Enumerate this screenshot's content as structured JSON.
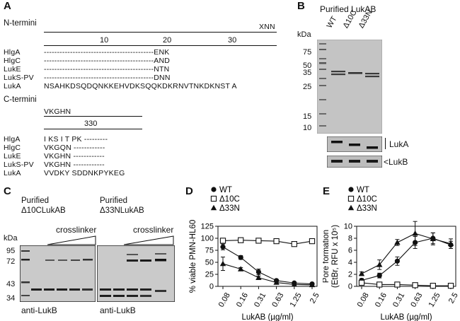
{
  "panel_a": {
    "label": "A",
    "n_title": "N-termini",
    "n_consensus": "XNN",
    "n_ticks": [
      "10",
      "20",
      "30"
    ],
    "n_rows": [
      {
        "name": "HlgA",
        "seq": "------------------------------------------ENK"
      },
      {
        "name": "HlgC",
        "seq": "------------------------------------------AND"
      },
      {
        "name": "LukE",
        "seq": "------------------------------------------NTN"
      },
      {
        "name": "LukS-PV",
        "seq": "------------------------------------------DNN"
      },
      {
        "name": "LukA",
        "seq": "NSAHKDSQDQNKKEHVDKSQQKDKRNVTNKDKNST A"
      }
    ],
    "c_title": "C-termini",
    "c_consensus": "VKGHN",
    "c_tick": "330",
    "c_rows": [
      {
        "name": "HlgA",
        "seq": "I KS I T PK ---------"
      },
      {
        "name": "HlgC",
        "seq": "VKGQN ------------"
      },
      {
        "name": "LukE",
        "seq": "VKGHN ------------"
      },
      {
        "name": "LukS-PV",
        "seq": "VKGHN ------------"
      },
      {
        "name": "LukA",
        "seq": "VVDKY SDDNKPYKEG"
      }
    ]
  },
  "panel_b": {
    "label": "B",
    "title": "Purified LukAB",
    "kda": "kDa",
    "lanes": [
      "WT",
      "Δ10C",
      "Δ33N"
    ],
    "markers": [
      "75",
      "50",
      "35",
      "25",
      "15",
      "10"
    ],
    "luka_label": "LukA",
    "lukb_label": "<LukB"
  },
  "panel_c": {
    "label": "C",
    "left_title_1": "Purified",
    "left_title_2": "Δ10CLukAB",
    "right_title_1": "Purified",
    "right_title_2": "Δ33NLukAB",
    "crosslinker": "crosslinker",
    "kda": "kDa",
    "markers": [
      "95",
      "72",
      "43",
      "34"
    ],
    "antibody": "anti-LukB"
  },
  "chart_data": [
    {
      "panel": "D",
      "type": "line",
      "ylabel": "% viable PMN-HL60",
      "xlabel": "LukAB (µg/ml)",
      "categories": [
        "0.08",
        "0.16",
        "0.31",
        "0.63",
        "1.25",
        "2.5"
      ],
      "ylim": [
        0,
        125
      ],
      "yticks": [
        "0",
        "25",
        "50",
        "75",
        "100",
        "125"
      ],
      "legend_position": "top-left",
      "series": [
        {
          "name": "WT",
          "marker": "circle-filled",
          "values": [
            82,
            60,
            30,
            12,
            7,
            5
          ],
          "errors": [
            6,
            4,
            6,
            2,
            2,
            1
          ]
        },
        {
          "name": "Δ10C",
          "marker": "square-open",
          "values": [
            95,
            96,
            95,
            94,
            88,
            94
          ],
          "errors": [
            3,
            2,
            2,
            2,
            3,
            5
          ]
        },
        {
          "name": "Δ33N",
          "marker": "triangle-filled",
          "values": [
            47,
            36,
            18,
            8,
            4,
            3
          ],
          "errors": [
            14,
            3,
            3,
            2,
            1,
            1
          ]
        }
      ]
    },
    {
      "panel": "E",
      "type": "line",
      "ylabel": "Pore formation",
      "ylabel2": "(EtBr, RFU x 10⁵)",
      "xlabel": "LukAB (µg/ml)",
      "categories": [
        "0.08",
        "0.16",
        "0.31",
        "0.63",
        "1.25",
        "2.5"
      ],
      "ylim": [
        0,
        10
      ],
      "yticks": [
        "0",
        "2",
        "4",
        "6",
        "8",
        "10"
      ],
      "legend_position": "top-left",
      "series": [
        {
          "name": "WT",
          "marker": "circle-filled",
          "values": [
            1.0,
            1.8,
            4.2,
            7.3,
            8.0,
            6.9
          ],
          "errors": [
            0.3,
            0.4,
            0.7,
            1.0,
            0.9,
            0.6
          ]
        },
        {
          "name": "Δ10C",
          "marker": "square-open",
          "values": [
            0.6,
            0.3,
            0.3,
            0.2,
            0.1,
            0.1
          ],
          "errors": [
            0.2,
            0.1,
            0.1,
            0.1,
            0.1,
            0.1
          ]
        },
        {
          "name": "Δ33N",
          "marker": "triangle-filled",
          "values": [
            2.1,
            3.6,
            7.3,
            8.8,
            7.9,
            7.1
          ],
          "errors": [
            0.3,
            0.8,
            0.5,
            2.0,
            1.0,
            0.8
          ]
        }
      ]
    }
  ]
}
